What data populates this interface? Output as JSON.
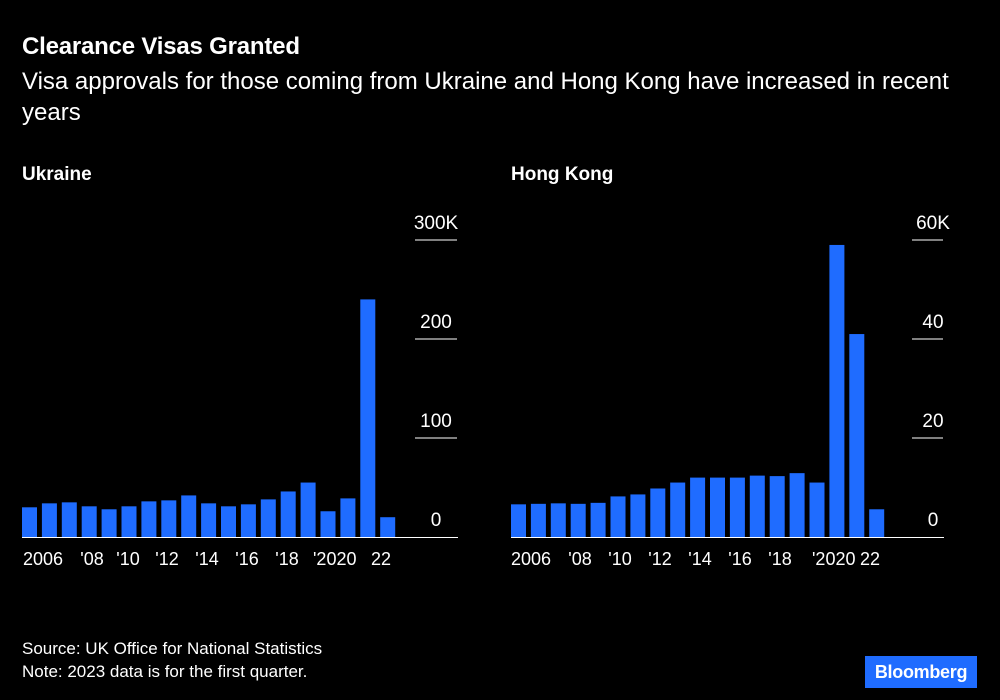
{
  "header": {
    "title": "Clearance Visas Granted",
    "subtitle": "Visa approvals for those coming from Ukraine and Hong Kong have increased in recent years"
  },
  "footer": {
    "source": "Source: UK Office for National Statistics",
    "note": "Note: 2023 data is for the first quarter."
  },
  "logo": "Bloomberg",
  "colors": {
    "bar": "#1f6cff",
    "background": "#000000",
    "text": "#ffffff"
  },
  "chart_data": [
    {
      "type": "bar",
      "title": "Ukraine",
      "categories": [
        "2005",
        "2006",
        "2007",
        "2008",
        "2009",
        "2010",
        "2011",
        "2012",
        "2013",
        "2014",
        "2015",
        "2016",
        "2017",
        "2018",
        "2019",
        "2020",
        "2021",
        "2022",
        "2023"
      ],
      "tick_labels": [
        "2006",
        "'08",
        "'10",
        "'12",
        "'14",
        "'16",
        "'18",
        "'2020",
        "22"
      ],
      "y_ticks": [
        "0",
        "100",
        "200",
        "300K"
      ],
      "ylim": [
        0,
        300000
      ],
      "values": [
        30000,
        34000,
        35000,
        31000,
        28000,
        31000,
        36000,
        37000,
        42000,
        34000,
        31000,
        33000,
        38000,
        46000,
        55000,
        26000,
        39000,
        240000,
        20000
      ],
      "grid": true,
      "yaxis_position": "right"
    },
    {
      "type": "bar",
      "title": "Hong Kong",
      "categories": [
        "2005",
        "2006",
        "2007",
        "2008",
        "2009",
        "2010",
        "2011",
        "2012",
        "2013",
        "2014",
        "2015",
        "2016",
        "2017",
        "2018",
        "2019",
        "2020",
        "2021",
        "2022",
        "2023"
      ],
      "tick_labels": [
        "2006",
        "'08",
        "'10",
        "'12",
        "'14",
        "'16",
        "'18",
        "'2020",
        "22"
      ],
      "y_ticks": [
        "0",
        "20",
        "40",
        "60K"
      ],
      "ylim": [
        0,
        60000
      ],
      "values": [
        6600,
        6700,
        6800,
        6700,
        6900,
        8200,
        8600,
        9800,
        11000,
        12000,
        12000,
        12000,
        12400,
        12300,
        12900,
        11000,
        59000,
        41000,
        5600
      ],
      "grid": true,
      "yaxis_position": "right"
    }
  ]
}
